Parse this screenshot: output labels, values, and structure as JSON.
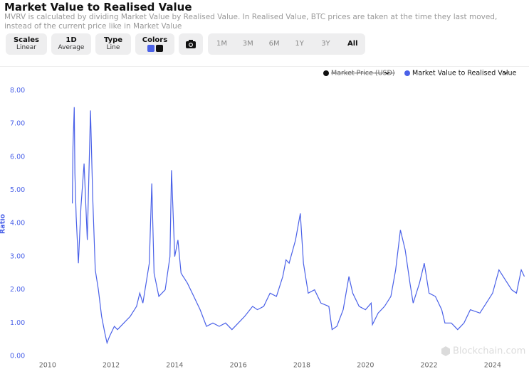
{
  "header": {
    "title": "Market Value to Realised Value",
    "description": "MVRV is calculated by dividing Market Value by Realised Value. In Realised Value, BTC prices are taken at the time they last moved, instead of the current price like in Market Value"
  },
  "controls": {
    "scales": {
      "label": "Scales",
      "value": "Linear"
    },
    "interval": {
      "label": "1D",
      "value": "Average"
    },
    "type": {
      "label": "Type",
      "value": "Line"
    },
    "colors": {
      "label": "Colors",
      "swatches": [
        "#4a61e8",
        "#111111"
      ]
    },
    "ranges": [
      "1M",
      "3M",
      "6M",
      "1Y",
      "3Y",
      "All"
    ],
    "active_range": "All"
  },
  "watermark": "Blockchain.com",
  "chart_data": {
    "type": "line",
    "y_label": "Ratio",
    "hidden_series": {
      "name": "Market Price (USD)",
      "color": "#111111"
    },
    "series": [
      {
        "name": "Market Value to Realised Value",
        "color": "#4a61e8",
        "x": [
          2010.78,
          2010.8,
          2010.84,
          2010.86,
          2010.9,
          2010.97,
          2011.05,
          2011.15,
          2011.25,
          2011.35,
          2011.42,
          2011.5,
          2011.6,
          2011.7,
          2011.8,
          2011.87,
          2011.95,
          2012.1,
          2012.2,
          2012.4,
          2012.6,
          2012.8,
          2012.9,
          2013.0,
          2013.2,
          2013.28,
          2013.35,
          2013.5,
          2013.7,
          2013.85,
          2013.9,
          2014.0,
          2014.1,
          2014.2,
          2014.4,
          2014.6,
          2014.8,
          2015.0,
          2015.2,
          2015.4,
          2015.6,
          2015.8,
          2016.0,
          2016.2,
          2016.45,
          2016.6,
          2016.8,
          2017.0,
          2017.2,
          2017.4,
          2017.5,
          2017.6,
          2017.8,
          2017.95,
          2018.05,
          2018.2,
          2018.4,
          2018.6,
          2018.85,
          2018.95,
          2019.1,
          2019.3,
          2019.48,
          2019.6,
          2019.8,
          2020.0,
          2020.18,
          2020.22,
          2020.4,
          2020.6,
          2020.8,
          2020.95,
          2021.1,
          2021.25,
          2021.4,
          2021.5,
          2021.7,
          2021.85,
          2022.0,
          2022.2,
          2022.4,
          2022.5,
          2022.7,
          2022.9,
          2023.1,
          2023.3,
          2023.6,
          2023.8,
          2024.0,
          2024.2,
          2024.4,
          2024.6,
          2024.75,
          2024.9,
          2025.0
        ],
        "values": [
          4.6,
          6.3,
          7.5,
          5.5,
          4.2,
          2.8,
          4.5,
          5.8,
          3.5,
          7.4,
          4.8,
          2.6,
          2.0,
          1.2,
          0.7,
          0.4,
          0.6,
          0.9,
          0.8,
          1.0,
          1.2,
          1.5,
          1.9,
          1.6,
          2.8,
          5.2,
          2.5,
          1.8,
          2.0,
          3.0,
          5.6,
          3.0,
          3.5,
          2.5,
          2.2,
          1.8,
          1.4,
          0.9,
          1.0,
          0.9,
          1.0,
          0.8,
          1.0,
          1.2,
          1.5,
          1.4,
          1.5,
          1.9,
          1.8,
          2.4,
          2.9,
          2.8,
          3.5,
          4.3,
          2.8,
          1.9,
          2.0,
          1.6,
          1.5,
          0.8,
          0.9,
          1.4,
          2.4,
          1.9,
          1.5,
          1.4,
          1.6,
          0.95,
          1.3,
          1.5,
          1.8,
          2.6,
          3.8,
          3.2,
          2.2,
          1.6,
          2.2,
          2.8,
          1.9,
          1.8,
          1.4,
          1.0,
          1.0,
          0.8,
          1.0,
          1.4,
          1.3,
          1.6,
          1.9,
          2.6,
          2.3,
          2.0,
          1.9,
          2.6,
          2.4
        ]
      }
    ],
    "xlim": [
      2009.4,
      2025.1
    ],
    "xticks": [
      2010,
      2012,
      2014,
      2016,
      2018,
      2020,
      2022,
      2024
    ],
    "ylim": [
      0,
      8.2
    ],
    "yticks": [
      {
        "value": 0,
        "label": "0.00"
      },
      {
        "value": 1,
        "label": "1.00"
      },
      {
        "value": 2,
        "label": "2.00"
      },
      {
        "value": 3,
        "label": "3.00"
      },
      {
        "value": 4,
        "label": "4.00"
      },
      {
        "value": 5,
        "label": "5.00"
      },
      {
        "value": 6,
        "label": "6.00"
      },
      {
        "value": 7,
        "label": "7.00"
      },
      {
        "value": 8,
        "label": "8.00"
      }
    ],
    "grid": false
  }
}
